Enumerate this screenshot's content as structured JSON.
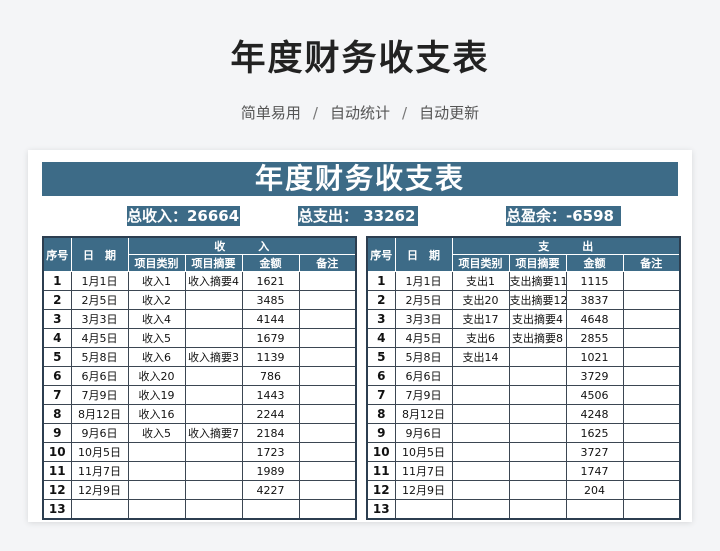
{
  "header": {
    "title": "年度财务收支表",
    "subtitle": [
      "简单易用",
      "自动统计",
      "自动更新"
    ],
    "separator": "/"
  },
  "sheet": {
    "title": "年度财务收支表",
    "accent": "#3d6b87",
    "summary": {
      "income": "总收入：26664",
      "expense": "总支出：  33262",
      "balance": "总盈余：-6598"
    },
    "income": {
      "group": "收　　　入",
      "headers": [
        "序号",
        "日　期",
        "项目类别",
        "项目摘要",
        "金额",
        "备注"
      ],
      "rows": [
        [
          "1",
          "1月1日",
          "收入1",
          "收入摘要4",
          "1621",
          ""
        ],
        [
          "2",
          "2月5日",
          "收入2",
          "",
          "3485",
          ""
        ],
        [
          "3",
          "3月3日",
          "收入4",
          "",
          "4144",
          ""
        ],
        [
          "4",
          "4月5日",
          "收入5",
          "",
          "1679",
          ""
        ],
        [
          "5",
          "5月8日",
          "收入6",
          "收入摘要3",
          "1139",
          ""
        ],
        [
          "6",
          "6月6日",
          "收入20",
          "",
          "786",
          ""
        ],
        [
          "7",
          "7月9日",
          "收入19",
          "",
          "1443",
          ""
        ],
        [
          "8",
          "8月12日",
          "收入16",
          "",
          "2244",
          ""
        ],
        [
          "9",
          "9月6日",
          "收入5",
          "收入摘要7",
          "2184",
          ""
        ],
        [
          "10",
          "10月5日",
          "",
          "",
          "1723",
          ""
        ],
        [
          "11",
          "11月7日",
          "",
          "",
          "1989",
          ""
        ],
        [
          "12",
          "12月9日",
          "",
          "",
          "4227",
          ""
        ],
        [
          "13",
          "",
          "",
          "",
          "",
          ""
        ]
      ]
    },
    "expense": {
      "group": "支　　　出",
      "headers": [
        "序号",
        "日　期",
        "项目类别",
        "项目摘要",
        "金额",
        "备注"
      ],
      "rows": [
        [
          "1",
          "1月1日",
          "支出1",
          "支出摘要11",
          "1115",
          ""
        ],
        [
          "2",
          "2月5日",
          "支出20",
          "支出摘要12",
          "3837",
          ""
        ],
        [
          "3",
          "3月3日",
          "支出17",
          "支出摘要4",
          "4648",
          ""
        ],
        [
          "4",
          "4月5日",
          "支出6",
          "支出摘要8",
          "2855",
          ""
        ],
        [
          "5",
          "5月8日",
          "支出14",
          "",
          "1021",
          ""
        ],
        [
          "6",
          "6月6日",
          "",
          "",
          "3729",
          ""
        ],
        [
          "7",
          "7月9日",
          "",
          "",
          "4506",
          ""
        ],
        [
          "8",
          "8月12日",
          "",
          "",
          "4248",
          ""
        ],
        [
          "9",
          "9月6日",
          "",
          "",
          "1625",
          ""
        ],
        [
          "10",
          "10月5日",
          "",
          "",
          "3727",
          ""
        ],
        [
          "11",
          "11月7日",
          "",
          "",
          "1747",
          ""
        ],
        [
          "12",
          "12月9日",
          "",
          "",
          "204",
          ""
        ],
        [
          "13",
          "",
          "",
          "",
          "",
          ""
        ]
      ]
    }
  }
}
